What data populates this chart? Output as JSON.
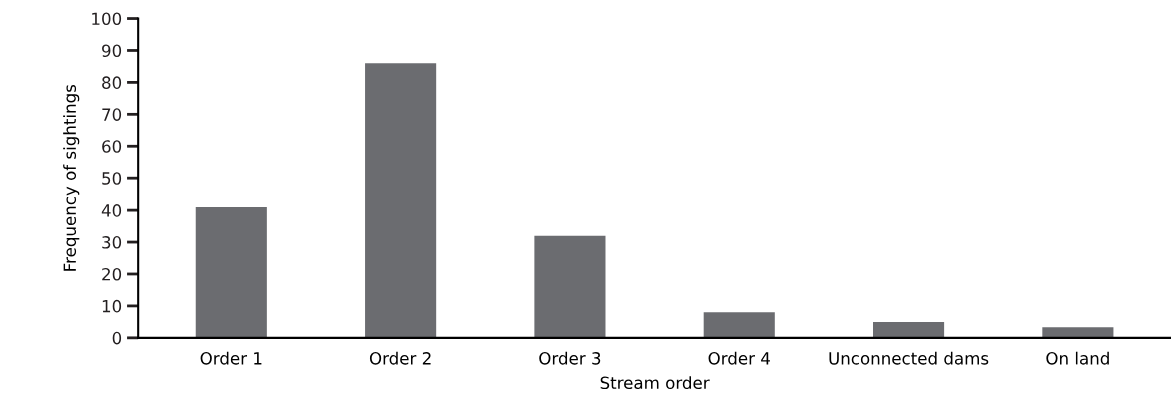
{
  "chart_data": {
    "type": "bar",
    "xlabel": "Stream order",
    "ylabel": "Frequency of sightings",
    "categories": [
      "Order 1",
      "Order 2",
      "Order 3",
      "Order 4",
      "Unconnected dams",
      "On land"
    ],
    "values": [
      41,
      86,
      32,
      8,
      5,
      3.3
    ],
    "color": "#6b6c70",
    "ylim": [
      0,
      100
    ],
    "yticks": [
      0,
      10,
      20,
      30,
      40,
      50,
      60,
      70,
      80,
      90,
      100
    ],
    "grid": false
  }
}
